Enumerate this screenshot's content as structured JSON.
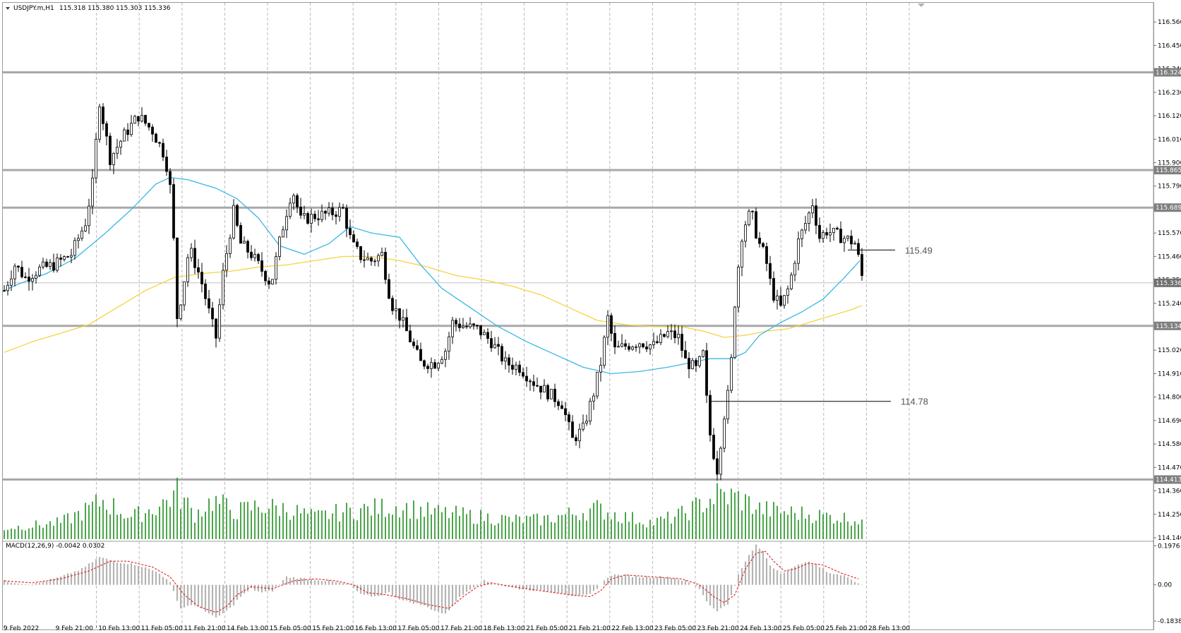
{
  "window": {
    "symbol_label": "USDJPY.m,H1",
    "ohlc_label": "115.318 115.380 115.303 115.336",
    "macd_label": "MACD(12,26,9) -0.0042 0.0302"
  },
  "colors": {
    "background": "#ffffff",
    "grid": "#b8b8b8",
    "candle": "#000000",
    "level_line": "#a8a8a8",
    "ma_fast": "#3bb7e6",
    "ma_slow": "#f5d33f",
    "volume": "#1f8f1f",
    "macd_hist": "#b4b4b4",
    "macd_signal": "#e02020",
    "tag_bg": "#7f7f7f"
  },
  "chart_data": {
    "type": "candlestick",
    "symbol": "USDJPY.m",
    "timeframe": "H1",
    "last_bar": {
      "open": 115.318,
      "high": 115.38,
      "low": 115.303,
      "close": 115.336
    },
    "price_axis": {
      "range": [
        114.13,
        116.65
      ],
      "ticks": [
        "116.560",
        "116.450",
        "116.340",
        "116.230",
        "116.120",
        "116.010",
        "115.900",
        "115.790",
        "115.680",
        "115.570",
        "115.460",
        "115.350",
        "115.240",
        "115.130",
        "115.020",
        "114.910",
        "114.800",
        "114.690",
        "114.580",
        "114.470",
        "114.360",
        "114.250",
        "114.140"
      ]
    },
    "time_axis": {
      "labels": [
        "9 Feb 2022",
        "9 Feb 21:00",
        "10 Feb 13:00",
        "11 Feb 05:00",
        "11 Feb 21:00",
        "14 Feb 13:00",
        "15 Feb 05:00",
        "15 Feb 21:00",
        "16 Feb 13:00",
        "17 Feb 05:00",
        "17 Feb 21:00",
        "18 Feb 13:00",
        "21 Feb 05:00",
        "21 Feb 21:00",
        "22 Feb 13:00",
        "23 Feb 05:00",
        "23 Feb 21:00",
        "24 Feb 13:00",
        "25 Feb 05:00",
        "25 Feb 21:00",
        "28 Feb 13:00"
      ]
    },
    "levels": [
      {
        "price": 116.324,
        "label": "116.324"
      },
      {
        "price": 115.865,
        "label": "115.865"
      },
      {
        "price": 115.689,
        "label": "115.689"
      },
      {
        "price": 115.134,
        "label": "115.134"
      },
      {
        "price": 114.413,
        "label": "114.413"
      }
    ],
    "current_price": {
      "price": 115.336,
      "label": "115.336"
    },
    "annotations": [
      {
        "price": 115.49,
        "label": "115.49",
        "from_bar": 1195,
        "to_bar": 1262
      },
      {
        "price": 114.78,
        "label": "114.78",
        "from_bar": 1000,
        "to_bar": 1256
      }
    ],
    "ma_fast_path": [
      [
        0,
        115.3
      ],
      [
        20,
        115.33
      ],
      [
        60,
        115.38
      ],
      [
        100,
        115.45
      ],
      [
        140,
        115.56
      ],
      [
        180,
        115.68
      ],
      [
        215,
        115.8
      ],
      [
        235,
        115.83
      ],
      [
        260,
        115.82
      ],
      [
        300,
        115.78
      ],
      [
        330,
        115.73
      ],
      [
        360,
        115.64
      ],
      [
        390,
        115.51
      ],
      [
        425,
        115.47
      ],
      [
        460,
        115.52
      ],
      [
        490,
        115.6
      ],
      [
        520,
        115.57
      ],
      [
        560,
        115.55
      ],
      [
        590,
        115.42
      ],
      [
        620,
        115.31
      ],
      [
        660,
        115.22
      ],
      [
        700,
        115.13
      ],
      [
        740,
        115.06
      ],
      [
        780,
        115.0
      ],
      [
        820,
        114.94
      ],
      [
        860,
        114.91
      ],
      [
        900,
        114.92
      ],
      [
        940,
        114.94
      ],
      [
        970,
        114.96
      ],
      [
        1000,
        114.98
      ],
      [
        1030,
        114.98
      ],
      [
        1050,
        115.01
      ],
      [
        1070,
        115.09
      ],
      [
        1100,
        115.15
      ],
      [
        1130,
        115.2
      ],
      [
        1160,
        115.26
      ],
      [
        1190,
        115.36
      ],
      [
        1212,
        115.44
      ]
    ],
    "ma_slow_path": [
      [
        0,
        115.01
      ],
      [
        40,
        115.06
      ],
      [
        80,
        115.1
      ],
      [
        120,
        115.14
      ],
      [
        160,
        115.22
      ],
      [
        200,
        115.3
      ],
      [
        240,
        115.36
      ],
      [
        280,
        115.38
      ],
      [
        320,
        115.39
      ],
      [
        360,
        115.41
      ],
      [
        400,
        115.42
      ],
      [
        440,
        115.44
      ],
      [
        480,
        115.46
      ],
      [
        520,
        115.46
      ],
      [
        560,
        115.44
      ],
      [
        600,
        115.41
      ],
      [
        640,
        115.37
      ],
      [
        680,
        115.35
      ],
      [
        720,
        115.32
      ],
      [
        760,
        115.28
      ],
      [
        800,
        115.22
      ],
      [
        840,
        115.16
      ],
      [
        880,
        115.14
      ],
      [
        920,
        115.13
      ],
      [
        960,
        115.13
      ],
      [
        990,
        115.11
      ],
      [
        1020,
        115.08
      ],
      [
        1050,
        115.09
      ],
      [
        1080,
        115.11
      ],
      [
        1110,
        115.12
      ],
      [
        1140,
        115.15
      ],
      [
        1170,
        115.18
      ],
      [
        1200,
        115.21
      ],
      [
        1215,
        115.23
      ]
    ],
    "swing_path": [
      [
        0,
        115.3
      ],
      [
        15,
        115.42
      ],
      [
        30,
        115.36
      ],
      [
        50,
        115.4
      ],
      [
        70,
        115.42
      ],
      [
        95,
        115.47
      ],
      [
        115,
        115.62
      ],
      [
        125,
        115.8
      ],
      [
        135,
        116.19
      ],
      [
        150,
        115.92
      ],
      [
        170,
        116.03
      ],
      [
        190,
        116.12
      ],
      [
        210,
        116.05
      ],
      [
        228,
        115.93
      ],
      [
        238,
        115.72
      ],
      [
        244,
        115.16
      ],
      [
        252,
        115.29
      ],
      [
        262,
        115.5
      ],
      [
        278,
        115.36
      ],
      [
        293,
        115.16
      ],
      [
        300,
        115.08
      ],
      [
        310,
        115.38
      ],
      [
        325,
        115.67
      ],
      [
        335,
        115.52
      ],
      [
        350,
        115.47
      ],
      [
        362,
        115.41
      ],
      [
        378,
        115.33
      ],
      [
        392,
        115.56
      ],
      [
        408,
        115.78
      ],
      [
        420,
        115.63
      ],
      [
        440,
        115.65
      ],
      [
        460,
        115.66
      ],
      [
        480,
        115.68
      ],
      [
        492,
        115.52
      ],
      [
        505,
        115.46
      ],
      [
        520,
        115.44
      ],
      [
        535,
        115.47
      ],
      [
        548,
        115.24
      ],
      [
        560,
        115.18
      ],
      [
        575,
        115.07
      ],
      [
        590,
        114.96
      ],
      [
        610,
        114.96
      ],
      [
        625,
        115.02
      ],
      [
        635,
        115.15
      ],
      [
        655,
        115.13
      ],
      [
        670,
        115.12
      ],
      [
        690,
        115.06
      ],
      [
        710,
        114.96
      ],
      [
        730,
        114.94
      ],
      [
        750,
        114.87
      ],
      [
        770,
        114.82
      ],
      [
        790,
        114.77
      ],
      [
        805,
        114.6
      ],
      [
        820,
        114.65
      ],
      [
        835,
        114.82
      ],
      [
        845,
        114.96
      ],
      [
        855,
        115.17
      ],
      [
        865,
        115.02
      ],
      [
        880,
        115.04
      ],
      [
        900,
        115.06
      ],
      [
        920,
        115.04
      ],
      [
        940,
        115.1
      ],
      [
        955,
        115.08
      ],
      [
        965,
        114.97
      ],
      [
        980,
        114.93
      ],
      [
        990,
        115.0
      ],
      [
        998,
        114.66
      ],
      [
        1004,
        114.55
      ],
      [
        1010,
        114.46
      ],
      [
        1020,
        114.72
      ],
      [
        1028,
        114.86
      ],
      [
        1036,
        115.3
      ],
      [
        1046,
        115.59
      ],
      [
        1058,
        115.67
      ],
      [
        1068,
        115.53
      ],
      [
        1078,
        115.46
      ],
      [
        1088,
        115.29
      ],
      [
        1100,
        115.22
      ],
      [
        1112,
        115.32
      ],
      [
        1125,
        115.53
      ],
      [
        1138,
        115.64
      ],
      [
        1145,
        115.71
      ],
      [
        1155,
        115.55
      ],
      [
        1165,
        115.58
      ],
      [
        1180,
        115.56
      ],
      [
        1195,
        115.54
      ],
      [
        1206,
        115.52
      ],
      [
        1212,
        115.42
      ],
      [
        1216,
        115.35
      ]
    ],
    "volume_profile": [
      [
        0,
        0.2
      ],
      [
        40,
        0.25
      ],
      [
        80,
        0.3
      ],
      [
        120,
        0.55
      ],
      [
        140,
        0.7
      ],
      [
        180,
        0.4
      ],
      [
        220,
        0.6
      ],
      [
        245,
        0.85
      ],
      [
        270,
        0.45
      ],
      [
        295,
        0.7
      ],
      [
        330,
        0.5
      ],
      [
        360,
        0.6
      ],
      [
        400,
        0.55
      ],
      [
        440,
        0.4
      ],
      [
        480,
        0.5
      ],
      [
        520,
        0.55
      ],
      [
        560,
        0.6
      ],
      [
        600,
        0.5
      ],
      [
        640,
        0.45
      ],
      [
        680,
        0.4
      ],
      [
        720,
        0.35
      ],
      [
        760,
        0.35
      ],
      [
        800,
        0.45
      ],
      [
        840,
        0.55
      ],
      [
        880,
        0.4
      ],
      [
        920,
        0.3
      ],
      [
        960,
        0.45
      ],
      [
        990,
        0.65
      ],
      [
        1010,
        0.8
      ],
      [
        1040,
        0.75
      ],
      [
        1070,
        0.55
      ],
      [
        1100,
        0.5
      ],
      [
        1140,
        0.45
      ],
      [
        1180,
        0.4
      ],
      [
        1215,
        0.35
      ]
    ],
    "macd": {
      "label": "MACD(12,26,9)",
      "main": -0.0042,
      "signal": 0.0302,
      "axis_ticks": [
        "0.1976",
        "0.00",
        "-0.1838"
      ],
      "range": [
        -0.205,
        0.21
      ],
      "hist_path": [
        [
          0,
          0.02
        ],
        [
          40,
          0.0
        ],
        [
          80,
          0.04
        ],
        [
          110,
          0.08
        ],
        [
          135,
          0.14
        ],
        [
          155,
          0.12
        ],
        [
          190,
          0.1
        ],
        [
          220,
          0.06
        ],
        [
          235,
          0.01
        ],
        [
          250,
          -0.12
        ],
        [
          265,
          -0.1
        ],
        [
          280,
          -0.12
        ],
        [
          300,
          -0.17
        ],
        [
          320,
          -0.12
        ],
        [
          335,
          -0.06
        ],
        [
          350,
          -0.02
        ],
        [
          365,
          -0.04
        ],
        [
          380,
          -0.03
        ],
        [
          400,
          0.04
        ],
        [
          430,
          0.03
        ],
        [
          460,
          0.02
        ],
        [
          490,
          0.0
        ],
        [
          505,
          -0.05
        ],
        [
          525,
          -0.06
        ],
        [
          545,
          -0.04
        ],
        [
          565,
          -0.08
        ],
        [
          590,
          -0.1
        ],
        [
          610,
          -0.13
        ],
        [
          625,
          -0.15
        ],
        [
          640,
          -0.08
        ],
        [
          660,
          -0.02
        ],
        [
          680,
          0.02
        ],
        [
          700,
          0.0
        ],
        [
          730,
          -0.02
        ],
        [
          760,
          -0.03
        ],
        [
          790,
          -0.04
        ],
        [
          810,
          -0.06
        ],
        [
          830,
          -0.05
        ],
        [
          845,
          0.0
        ],
        [
          858,
          0.05
        ],
        [
          870,
          0.05
        ],
        [
          900,
          0.04
        ],
        [
          940,
          0.04
        ],
        [
          965,
          0.02
        ],
        [
          985,
          -0.02
        ],
        [
          998,
          -0.1
        ],
        [
          1010,
          -0.13
        ],
        [
          1025,
          -0.1
        ],
        [
          1040,
          0.05
        ],
        [
          1055,
          0.15
        ],
        [
          1065,
          0.2
        ],
        [
          1075,
          0.17
        ],
        [
          1085,
          0.1
        ],
        [
          1100,
          0.06
        ],
        [
          1115,
          0.08
        ],
        [
          1135,
          0.12
        ],
        [
          1150,
          0.1
        ],
        [
          1170,
          0.06
        ],
        [
          1195,
          0.04
        ],
        [
          1216,
          -0.004
        ]
      ],
      "signal_path": [
        [
          0,
          0.02
        ],
        [
          40,
          0.01
        ],
        [
          80,
          0.03
        ],
        [
          120,
          0.07
        ],
        [
          150,
          0.12
        ],
        [
          175,
          0.12
        ],
        [
          210,
          0.09
        ],
        [
          235,
          0.04
        ],
        [
          255,
          -0.05
        ],
        [
          275,
          -0.11
        ],
        [
          300,
          -0.14
        ],
        [
          315,
          -0.11
        ],
        [
          330,
          -0.05
        ],
        [
          350,
          -0.01
        ],
        [
          380,
          -0.02
        ],
        [
          410,
          0.02
        ],
        [
          440,
          0.03
        ],
        [
          470,
          0.02
        ],
        [
          495,
          0.0
        ],
        [
          515,
          -0.04
        ],
        [
          540,
          -0.05
        ],
        [
          570,
          -0.07
        ],
        [
          600,
          -0.1
        ],
        [
          630,
          -0.12
        ],
        [
          650,
          -0.06
        ],
        [
          670,
          -0.01
        ],
        [
          690,
          0.01
        ],
        [
          720,
          -0.01
        ],
        [
          760,
          -0.03
        ],
        [
          800,
          -0.05
        ],
        [
          830,
          -0.06
        ],
        [
          845,
          -0.03
        ],
        [
          860,
          0.03
        ],
        [
          880,
          0.05
        ],
        [
          920,
          0.04
        ],
        [
          960,
          0.03
        ],
        [
          985,
          0.0
        ],
        [
          1005,
          -0.06
        ],
        [
          1020,
          -0.09
        ],
        [
          1035,
          -0.05
        ],
        [
          1050,
          0.08
        ],
        [
          1065,
          0.16
        ],
        [
          1078,
          0.17
        ],
        [
          1090,
          0.12
        ],
        [
          1105,
          0.07
        ],
        [
          1120,
          0.08
        ],
        [
          1140,
          0.11
        ],
        [
          1160,
          0.1
        ],
        [
          1185,
          0.06
        ],
        [
          1210,
          0.03
        ]
      ]
    }
  }
}
